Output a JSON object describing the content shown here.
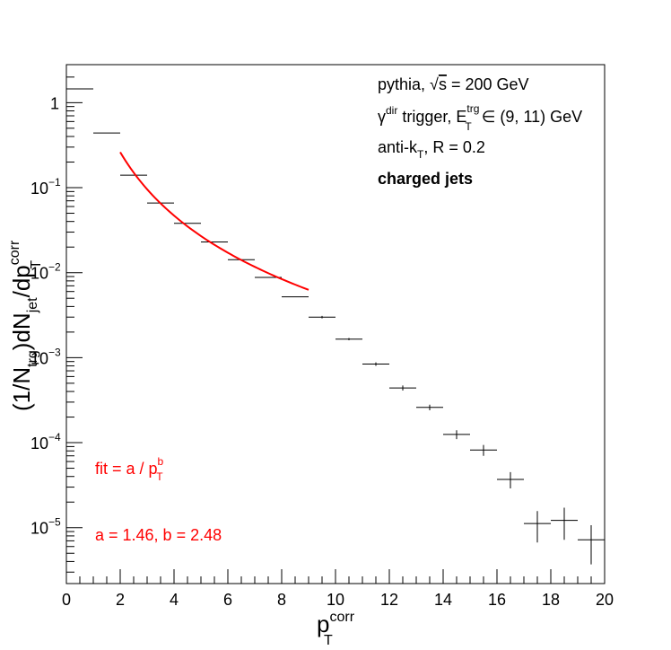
{
  "chart_data": {
    "type": "scatter",
    "x_axis": {
      "range": [
        0,
        20
      ],
      "ticks": [
        "0",
        "2",
        "4",
        "6",
        "8",
        "10",
        "12",
        "14",
        "16",
        "18",
        "20"
      ],
      "label_main": "p",
      "label_sup": "corr",
      "label_sub": "T"
    },
    "y_axis": {
      "scale": "log",
      "range": [
        2.2e-06,
        2.8
      ],
      "ticks": [
        {
          "value": 1,
          "base": "1",
          "exp": ""
        },
        {
          "value": 0.1,
          "base": "10",
          "exp": "−1"
        },
        {
          "value": 0.01,
          "base": "10",
          "exp": "−2"
        },
        {
          "value": 0.001,
          "base": "10",
          "exp": "−3"
        },
        {
          "value": 0.0001,
          "base": "10",
          "exp": "−4"
        },
        {
          "value": 1e-05,
          "base": "10",
          "exp": "−5"
        }
      ],
      "label": {
        "p1": "(1/N",
        "s1": "trg",
        "p2": ")dN",
        "s2": "jet",
        "p3": "/dp",
        "s3sup": "corr",
        "s3sub": "T"
      }
    },
    "histogram": [
      {
        "x0": 0,
        "x1": 1,
        "y": 1.45,
        "err": 0
      },
      {
        "x0": 1,
        "x1": 2,
        "y": 0.44,
        "err": 0
      },
      {
        "x0": 2,
        "x1": 3,
        "y": 0.14,
        "err": 0
      },
      {
        "x0": 3,
        "x1": 4,
        "y": 0.066,
        "err": 0
      },
      {
        "x0": 4,
        "x1": 5,
        "y": 0.038,
        "err": 0
      },
      {
        "x0": 5,
        "x1": 6,
        "y": 0.023,
        "err": 0
      },
      {
        "x0": 6,
        "x1": 7,
        "y": 0.0142,
        "err": 0
      },
      {
        "x0": 7,
        "x1": 8,
        "y": 0.0088,
        "err": 0
      },
      {
        "x0": 8,
        "x1": 9,
        "y": 0.0052,
        "err": 0
      },
      {
        "x0": 9,
        "x1": 10,
        "y": 0.003,
        "err": 0.0001
      },
      {
        "x0": 10,
        "x1": 11,
        "y": 0.00165,
        "err": 5e-05
      },
      {
        "x0": 11,
        "x1": 12,
        "y": 0.00084,
        "err": 4e-05
      },
      {
        "x0": 12,
        "x1": 13,
        "y": 0.00044,
        "err": 3e-05
      },
      {
        "x0": 13,
        "x1": 14,
        "y": 0.00026,
        "err": 2e-05
      },
      {
        "x0": 14,
        "x1": 15,
        "y": 0.000125,
        "err": 1.5e-05
      },
      {
        "x0": 15,
        "x1": 16,
        "y": 8.2e-05,
        "err": 1.2e-05
      },
      {
        "x0": 16,
        "x1": 17,
        "y": 3.7e-05,
        "err": 8e-06
      },
      {
        "x0": 17,
        "x1": 18,
        "y": 1.12e-05,
        "err": 4.5e-06
      },
      {
        "x0": 18,
        "x1": 19,
        "y": 1.22e-05,
        "err": 5e-06
      },
      {
        "x0": 19,
        "x1": 20,
        "y": 7.2e-06,
        "err": 3.5e-06
      }
    ],
    "fit": {
      "a": 1.46,
      "b": 2.48,
      "x_range": [
        2,
        9
      ],
      "color": "#ff0000"
    },
    "annotations": {
      "line1_pre": "pythia, ",
      "line1_sqrt": "√",
      "line1_s": "s",
      "line1_post": " = 200 GeV",
      "line2_gamma": "γ",
      "line2_dir": "dir",
      "line2_mid": " trigger, E",
      "line2_trg": "trg",
      "line2_T": "T",
      "line2_post": " ∈ (9, 11) GeV",
      "line3_pre": "anti-k",
      "line3_T": "T",
      "line3_post": ", R = 0.2",
      "line4": "charged jets",
      "fit_label_pre": "fit = a / p",
      "fit_label_sup": "b",
      "fit_label_sub": "T",
      "fit_params": "a = 1.46, b = 2.48"
    }
  }
}
